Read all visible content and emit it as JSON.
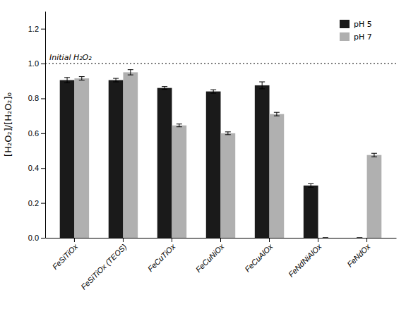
{
  "chart_data": {
    "type": "bar",
    "categories": [
      "FeSiTiOx",
      "FeSiTiOx (TEOS)",
      "FeCuTiOx",
      "FeCuNiOx",
      "FeCuAlOx",
      "FeNdNiAlOx",
      "FeNdOx"
    ],
    "series": [
      {
        "name": "pH 5",
        "color": "#1a1a1a",
        "values": [
          0.905,
          0.905,
          0.86,
          0.84,
          0.875,
          0.3,
          0.0
        ],
        "errors": [
          0.015,
          0.01,
          0.008,
          0.01,
          0.02,
          0.01,
          0.0
        ]
      },
      {
        "name": "pH 7",
        "color": "#b0b0b0",
        "values": [
          0.915,
          0.95,
          0.645,
          0.6,
          0.71,
          0.0,
          0.475
        ],
        "errors": [
          0.01,
          0.015,
          0.008,
          0.008,
          0.01,
          0.0,
          0.01
        ]
      }
    ],
    "ylabel": "[H₂O₂]/[H₂O₂]₀",
    "ylim": [
      0.0,
      1.3
    ],
    "yticks": [
      {
        "value": 0.0,
        "label": "0.0"
      },
      0.2,
      0.4,
      0.6,
      0.8,
      {
        "value": 1.0,
        "label": "1.0"
      },
      1.2
    ],
    "hline": {
      "y": 1.0,
      "label": "Initial H₂O₂",
      "line_style": "dotted"
    },
    "legend": "upper right",
    "grid": false
  }
}
